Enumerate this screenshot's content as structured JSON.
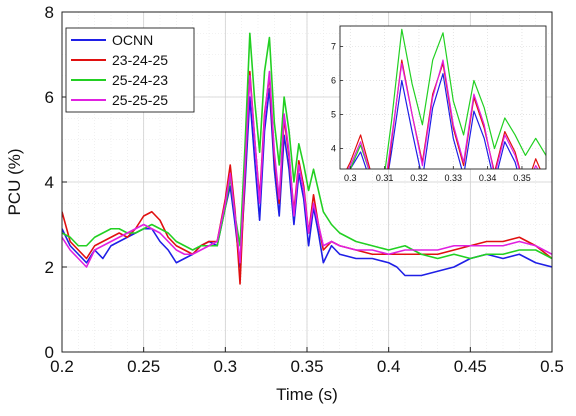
{
  "chart_data": [
    {
      "id": "main",
      "type": "line",
      "title": "",
      "xlabel": "Time (s)",
      "ylabel": "PCU (%)",
      "xlim": [
        0.2,
        0.5
      ],
      "ylim": [
        0,
        8
      ],
      "x_ticks": [
        "0.2",
        "0.25",
        "0.3",
        "0.35",
        "0.4",
        "0.45",
        "0.5"
      ],
      "y_ticks": [
        "0",
        "2",
        "4",
        "6",
        "8"
      ],
      "grid": true,
      "minor_grid": true,
      "legend_position": "top-left",
      "series": [
        {
          "name": "OCNN",
          "color": "#1f1fe6",
          "points": [
            [
              0.2,
              2.9
            ],
            [
              0.205,
              2.5
            ],
            [
              0.21,
              2.3
            ],
            [
              0.215,
              2.1
            ],
            [
              0.22,
              2.4
            ],
            [
              0.225,
              2.2
            ],
            [
              0.23,
              2.5
            ],
            [
              0.235,
              2.6
            ],
            [
              0.24,
              2.7
            ],
            [
              0.245,
              2.8
            ],
            [
              0.25,
              2.9
            ],
            [
              0.255,
              2.9
            ],
            [
              0.26,
              2.6
            ],
            [
              0.265,
              2.4
            ],
            [
              0.27,
              2.1
            ],
            [
              0.275,
              2.2
            ],
            [
              0.28,
              2.3
            ],
            [
              0.285,
              2.5
            ],
            [
              0.29,
              2.6
            ],
            [
              0.295,
              2.5
            ],
            [
              0.3,
              3.4
            ],
            [
              0.303,
              3.9
            ],
            [
              0.306,
              3.0
            ],
            [
              0.309,
              2.0
            ],
            [
              0.312,
              3.9
            ],
            [
              0.315,
              6.0
            ],
            [
              0.318,
              4.5
            ],
            [
              0.321,
              3.1
            ],
            [
              0.324,
              5.2
            ],
            [
              0.327,
              6.2
            ],
            [
              0.33,
              4.3
            ],
            [
              0.333,
              3.2
            ],
            [
              0.336,
              5.1
            ],
            [
              0.339,
              4.3
            ],
            [
              0.342,
              3.0
            ],
            [
              0.345,
              4.2
            ],
            [
              0.348,
              3.6
            ],
            [
              0.351,
              2.5
            ],
            [
              0.354,
              3.4
            ],
            [
              0.357,
              2.8
            ],
            [
              0.36,
              2.1
            ],
            [
              0.365,
              2.5
            ],
            [
              0.37,
              2.3
            ],
            [
              0.38,
              2.2
            ],
            [
              0.39,
              2.2
            ],
            [
              0.4,
              2.1
            ],
            [
              0.405,
              2.0
            ],
            [
              0.41,
              1.8
            ],
            [
              0.42,
              1.8
            ],
            [
              0.43,
              1.9
            ],
            [
              0.44,
              2.0
            ],
            [
              0.45,
              2.2
            ],
            [
              0.46,
              2.3
            ],
            [
              0.47,
              2.2
            ],
            [
              0.48,
              2.3
            ],
            [
              0.49,
              2.1
            ],
            [
              0.5,
              2.0
            ]
          ]
        },
        {
          "name": "23-24-25",
          "color": "#e01010",
          "points": [
            [
              0.2,
              3.3
            ],
            [
              0.205,
              2.6
            ],
            [
              0.21,
              2.4
            ],
            [
              0.215,
              2.2
            ],
            [
              0.22,
              2.5
            ],
            [
              0.225,
              2.6
            ],
            [
              0.23,
              2.7
            ],
            [
              0.235,
              2.8
            ],
            [
              0.24,
              2.7
            ],
            [
              0.245,
              2.9
            ],
            [
              0.25,
              3.2
            ],
            [
              0.255,
              3.3
            ],
            [
              0.26,
              3.1
            ],
            [
              0.265,
              2.7
            ],
            [
              0.27,
              2.5
            ],
            [
              0.275,
              2.4
            ],
            [
              0.28,
              2.3
            ],
            [
              0.285,
              2.5
            ],
            [
              0.29,
              2.6
            ],
            [
              0.295,
              2.6
            ],
            [
              0.3,
              3.6
            ],
            [
              0.303,
              4.4
            ],
            [
              0.306,
              3.3
            ],
            [
              0.309,
              1.6
            ],
            [
              0.312,
              4.2
            ],
            [
              0.315,
              6.6
            ],
            [
              0.318,
              5.0
            ],
            [
              0.321,
              3.6
            ],
            [
              0.324,
              5.6
            ],
            [
              0.327,
              6.5
            ],
            [
              0.33,
              4.6
            ],
            [
              0.333,
              3.5
            ],
            [
              0.336,
              5.5
            ],
            [
              0.339,
              4.6
            ],
            [
              0.342,
              3.3
            ],
            [
              0.345,
              4.5
            ],
            [
              0.348,
              3.9
            ],
            [
              0.351,
              2.8
            ],
            [
              0.354,
              3.7
            ],
            [
              0.357,
              3.0
            ],
            [
              0.36,
              2.4
            ],
            [
              0.365,
              2.6
            ],
            [
              0.37,
              2.5
            ],
            [
              0.38,
              2.4
            ],
            [
              0.39,
              2.3
            ],
            [
              0.4,
              2.3
            ],
            [
              0.41,
              2.3
            ],
            [
              0.42,
              2.3
            ],
            [
              0.43,
              2.3
            ],
            [
              0.44,
              2.4
            ],
            [
              0.45,
              2.5
            ],
            [
              0.46,
              2.6
            ],
            [
              0.47,
              2.6
            ],
            [
              0.48,
              2.7
            ],
            [
              0.49,
              2.5
            ],
            [
              0.5,
              2.2
            ]
          ]
        },
        {
          "name": "25-24-23",
          "color": "#22d022",
          "points": [
            [
              0.2,
              2.8
            ],
            [
              0.205,
              2.7
            ],
            [
              0.21,
              2.5
            ],
            [
              0.215,
              2.5
            ],
            [
              0.22,
              2.7
            ],
            [
              0.225,
              2.8
            ],
            [
              0.23,
              2.9
            ],
            [
              0.235,
              2.9
            ],
            [
              0.24,
              2.8
            ],
            [
              0.245,
              2.8
            ],
            [
              0.25,
              2.9
            ],
            [
              0.255,
              3.0
            ],
            [
              0.26,
              2.9
            ],
            [
              0.265,
              2.8
            ],
            [
              0.27,
              2.6
            ],
            [
              0.275,
              2.5
            ],
            [
              0.28,
              2.4
            ],
            [
              0.285,
              2.5
            ],
            [
              0.29,
              2.5
            ],
            [
              0.295,
              2.5
            ],
            [
              0.3,
              3.4
            ],
            [
              0.303,
              4.1
            ],
            [
              0.306,
              3.2
            ],
            [
              0.309,
              2.5
            ],
            [
              0.312,
              4.8
            ],
            [
              0.315,
              7.5
            ],
            [
              0.318,
              5.9
            ],
            [
              0.321,
              4.7
            ],
            [
              0.324,
              6.6
            ],
            [
              0.327,
              7.4
            ],
            [
              0.33,
              5.4
            ],
            [
              0.333,
              4.4
            ],
            [
              0.336,
              6.0
            ],
            [
              0.339,
              5.2
            ],
            [
              0.342,
              4.0
            ],
            [
              0.345,
              4.9
            ],
            [
              0.348,
              4.4
            ],
            [
              0.351,
              3.8
            ],
            [
              0.354,
              4.3
            ],
            [
              0.357,
              3.8
            ],
            [
              0.36,
              3.3
            ],
            [
              0.365,
              3.0
            ],
            [
              0.37,
              2.8
            ],
            [
              0.38,
              2.6
            ],
            [
              0.39,
              2.5
            ],
            [
              0.4,
              2.4
            ],
            [
              0.41,
              2.5
            ],
            [
              0.42,
              2.3
            ],
            [
              0.43,
              2.2
            ],
            [
              0.44,
              2.3
            ],
            [
              0.45,
              2.2
            ],
            [
              0.46,
              2.3
            ],
            [
              0.47,
              2.3
            ],
            [
              0.48,
              2.4
            ],
            [
              0.49,
              2.4
            ],
            [
              0.5,
              2.2
            ]
          ]
        },
        {
          "name": "25-25-25",
          "color": "#e020e0",
          "points": [
            [
              0.2,
              2.7
            ],
            [
              0.205,
              2.4
            ],
            [
              0.21,
              2.2
            ],
            [
              0.215,
              2.0
            ],
            [
              0.22,
              2.4
            ],
            [
              0.225,
              2.5
            ],
            [
              0.23,
              2.6
            ],
            [
              0.235,
              2.7
            ],
            [
              0.24,
              2.8
            ],
            [
              0.245,
              2.9
            ],
            [
              0.25,
              3.0
            ],
            [
              0.255,
              2.9
            ],
            [
              0.26,
              2.8
            ],
            [
              0.265,
              2.6
            ],
            [
              0.27,
              2.4
            ],
            [
              0.275,
              2.3
            ],
            [
              0.28,
              2.3
            ],
            [
              0.285,
              2.4
            ],
            [
              0.29,
              2.5
            ],
            [
              0.295,
              2.6
            ],
            [
              0.3,
              3.5
            ],
            [
              0.303,
              4.2
            ],
            [
              0.306,
              3.2
            ],
            [
              0.309,
              2.1
            ],
            [
              0.312,
              4.3
            ],
            [
              0.315,
              6.5
            ],
            [
              0.318,
              5.0
            ],
            [
              0.321,
              3.5
            ],
            [
              0.324,
              5.5
            ],
            [
              0.327,
              6.6
            ],
            [
              0.33,
              4.7
            ],
            [
              0.333,
              3.6
            ],
            [
              0.336,
              5.6
            ],
            [
              0.339,
              4.7
            ],
            [
              0.342,
              3.2
            ],
            [
              0.345,
              4.4
            ],
            [
              0.348,
              3.8
            ],
            [
              0.351,
              2.8
            ],
            [
              0.354,
              3.5
            ],
            [
              0.357,
              3.0
            ],
            [
              0.36,
              2.5
            ],
            [
              0.365,
              2.6
            ],
            [
              0.37,
              2.5
            ],
            [
              0.38,
              2.4
            ],
            [
              0.39,
              2.4
            ],
            [
              0.4,
              2.3
            ],
            [
              0.41,
              2.4
            ],
            [
              0.42,
              2.4
            ],
            [
              0.43,
              2.4
            ],
            [
              0.44,
              2.5
            ],
            [
              0.45,
              2.5
            ],
            [
              0.46,
              2.5
            ],
            [
              0.47,
              2.5
            ],
            [
              0.48,
              2.6
            ],
            [
              0.49,
              2.5
            ],
            [
              0.5,
              2.3
            ]
          ]
        }
      ]
    },
    {
      "id": "inset",
      "type": "line",
      "title": "",
      "xlim": [
        0.297,
        0.357
      ],
      "ylim": [
        3.4,
        7.6
      ],
      "x_ticks": [
        "0.3",
        "0.31",
        "0.32",
        "0.33",
        "0.34",
        "0.35"
      ],
      "y_ticks": [
        "4",
        "5",
        "6",
        "7"
      ],
      "grid": true,
      "series_ref": "main"
    }
  ]
}
